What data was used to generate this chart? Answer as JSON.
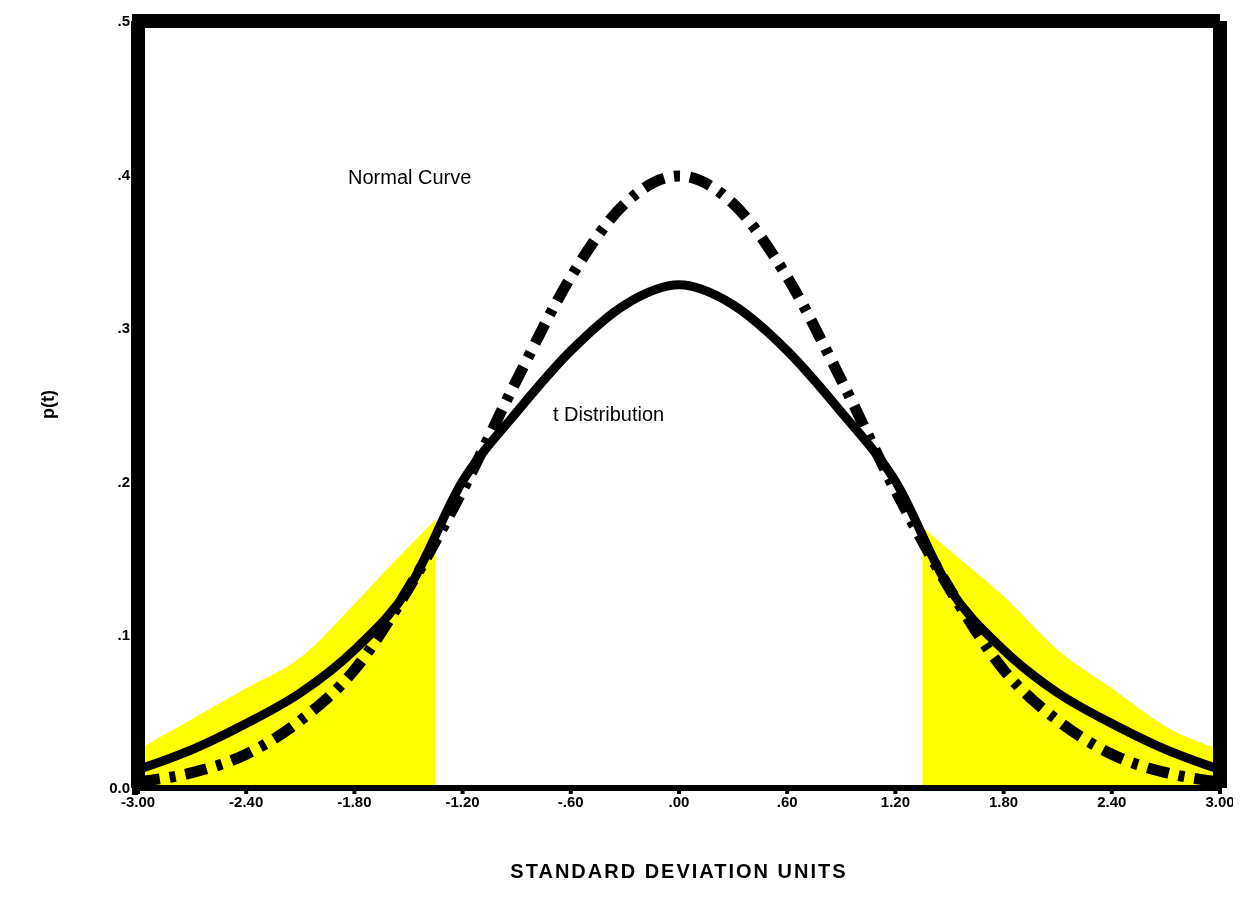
{
  "chart_data": {
    "type": "line",
    "xlabel": "STANDARD DEVIATION UNITS",
    "ylabel": "p(t)",
    "x": [
      -3,
      -2.7,
      -2.4,
      -2.1,
      -1.8,
      -1.5,
      -1.2,
      -0.9,
      -0.6,
      -0.3,
      0,
      0.3,
      0.6,
      0.9,
      1.2,
      1.5,
      1.8,
      2.1,
      2.4,
      2.7,
      3
    ],
    "series": [
      {
        "color": "#000000",
        "line_style": "dashed",
        "values": [
          0.004,
          0.01,
          0.022,
          0.044,
          0.077,
          0.13,
          0.194,
          0.266,
          0.333,
          0.381,
          0.399,
          0.381,
          0.333,
          0.266,
          0.194,
          0.13,
          0.077,
          0.044,
          0.022,
          0.01,
          0.004
        ]
      },
      {
        "color": "#000000",
        "line_style": "solid",
        "values": [
          0.012,
          0.025,
          0.042,
          0.062,
          0.09,
          0.13,
          0.2,
          0.245,
          0.285,
          0.315,
          0.328,
          0.315,
          0.285,
          0.245,
          0.2,
          0.13,
          0.09,
          0.062,
          0.042,
          0.025,
          0.012
        ]
      },
      {
        "type": "area",
        "color": "#ffff00",
        "x": [
          -3,
          -2.7,
          -2.4,
          -2.1,
          -1.8,
          -1.6,
          -1.35
        ],
        "values": [
          0.025,
          0.045,
          0.065,
          0.085,
          0.12,
          0.145,
          0.175
        ]
      },
      {
        "type": "area",
        "color": "#ffff00",
        "x": [
          1.35,
          1.6,
          1.8,
          2.1,
          2.4,
          2.7,
          3
        ],
        "values": [
          0.17,
          0.145,
          0.125,
          0.09,
          0.065,
          0.04,
          0.025
        ]
      }
    ],
    "xlim": [
      -3,
      3
    ],
    "xticks": [
      {
        "value": -3,
        "label": "-3.00"
      },
      {
        "value": -2.4,
        "label": "-2.40"
      },
      {
        "value": -1.8,
        "label": "-1.80"
      },
      {
        "value": -1.2,
        "label": "-1.20"
      },
      {
        "value": -0.6,
        "label": "-.60"
      },
      {
        "value": 0,
        "label": ".00"
      },
      {
        "value": 0.6,
        "label": ".60"
      },
      {
        "value": 1.2,
        "label": "1.20"
      },
      {
        "value": 1.8,
        "label": "1.80"
      },
      {
        "value": 2.4,
        "label": "2.40"
      },
      {
        "value": 3,
        "label": "3.00"
      }
    ],
    "ylim": [
      0,
      0.5
    ],
    "yticks": [
      {
        "value": 0,
        "label": "0.0"
      },
      {
        "value": 0.1,
        "label": ".1"
      },
      {
        "value": 0.2,
        "label": ".2"
      },
      {
        "value": 0.3,
        "label": ".3"
      },
      {
        "value": 0.4,
        "label": ".4"
      },
      {
        "value": 0.5,
        "label": ".5"
      }
    ],
    "annotations": [
      "Normal Curve",
      "t Distribution"
    ],
    "marker": "none"
  }
}
